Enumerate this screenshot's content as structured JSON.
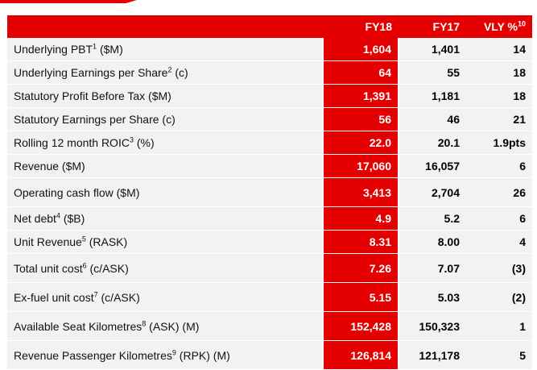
{
  "colors": {
    "accent": "#e40000",
    "row_background": "#f2f2f2"
  },
  "table": {
    "headers": {
      "label": "",
      "fy18": "FY18",
      "fy17": "FY17",
      "vly": "VLY %",
      "vly_note": "10"
    },
    "rows": [
      {
        "label": "Underlying PBT",
        "note": "1",
        "unit": " ($M)",
        "fy18": "1,604",
        "fy17": "1,401",
        "vly": "14"
      },
      {
        "label": "Underlying Earnings per Share",
        "note": "2",
        "unit": " (c)",
        "fy18": "64",
        "fy17": "55",
        "vly": "18"
      },
      {
        "label": "Statutory Profit Before Tax ($M)",
        "note": "",
        "unit": "",
        "fy18": "1,391",
        "fy17": "1,181",
        "vly": "18"
      },
      {
        "label": "Statutory Earnings per Share (c)",
        "note": "",
        "unit": "",
        "fy18": "56",
        "fy17": "46",
        "vly": "21"
      },
      {
        "label": "Rolling 12 month ROIC",
        "note": "3",
        "unit": " (%)",
        "fy18": "22.0",
        "fy17": "20.1",
        "vly": "1.9pts"
      },
      {
        "label": "Revenue ($M)",
        "note": "",
        "unit": "",
        "fy18": "17,060",
        "fy17": "16,057",
        "vly": "6"
      },
      {
        "label": "Operating cash flow ($M)",
        "note": "",
        "unit": "",
        "fy18": "3,413",
        "fy17": "2,704",
        "vly": "26"
      },
      {
        "label": "Net debt",
        "note": "4",
        "unit": " ($B)",
        "fy18": "4.9",
        "fy17": "5.2",
        "vly": "6"
      },
      {
        "label": "Unit Revenue",
        "note": "5",
        "unit": " (RASK)",
        "fy18": "8.31",
        "fy17": "8.00",
        "vly": "4"
      },
      {
        "label": "Total unit cost",
        "note": "6",
        "unit": " (c/ASK)",
        "fy18": "7.26",
        "fy17": "7.07",
        "vly": "(3)"
      },
      {
        "label": "Ex-fuel unit cost",
        "note": "7",
        "unit": " (c/ASK)",
        "fy18": "5.15",
        "fy17": "5.03",
        "vly": "(2)"
      },
      {
        "label": "Available Seat Kilometres",
        "note": "8",
        "unit": " (ASK) (M)",
        "fy18": "152,428",
        "fy17": "150,323",
        "vly": "1"
      },
      {
        "label": "Revenue Passenger Kilometres",
        "note": "9",
        "unit": " (RPK) (M)",
        "fy18": "126,814",
        "fy17": "121,178",
        "vly": "5"
      }
    ]
  }
}
